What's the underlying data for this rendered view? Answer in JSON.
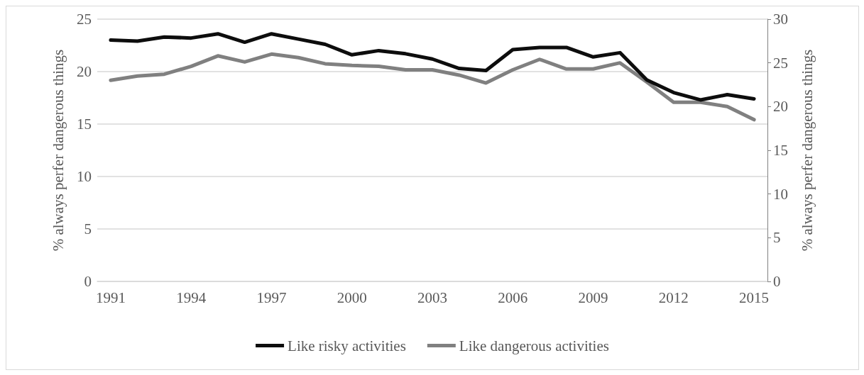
{
  "chart_data": {
    "type": "line",
    "ylabel": "% always perfer dangerous things",
    "y2label": "% always perfer dangerous things",
    "categories": [
      "1991",
      null,
      null,
      "1994",
      null,
      null,
      "1997",
      null,
      null,
      "2000",
      null,
      null,
      "2003",
      null,
      null,
      "2006",
      null,
      null,
      "2009",
      null,
      null,
      "2012",
      null,
      null,
      "2015"
    ],
    "series": [
      {
        "name": "Like risky activities",
        "color": "#0d0d0d",
        "values": [
          23.0,
          22.9,
          23.3,
          23.2,
          23.6,
          22.8,
          23.6,
          23.1,
          22.6,
          21.6,
          22.0,
          21.7,
          21.2,
          20.3,
          20.1,
          22.1,
          22.3,
          22.3,
          21.4,
          21.8,
          19.2,
          18.0,
          17.3,
          17.8,
          17.4
        ]
      },
      {
        "name": "Like dangerous activities",
        "color": "#808080",
        "axis": "y2",
        "values": [
          23.0,
          23.5,
          23.7,
          24.6,
          25.8,
          25.1,
          26.0,
          25.6,
          24.9,
          24.7,
          24.6,
          24.2,
          24.2,
          23.6,
          22.7,
          24.2,
          25.4,
          24.3,
          24.3,
          25.0,
          22.8,
          20.5,
          20.5,
          20.0,
          18.5
        ]
      }
    ],
    "ylim": [
      0,
      25
    ],
    "yticks": [
      0,
      5,
      10,
      15,
      20,
      25
    ],
    "y2lim": [
      0,
      30
    ],
    "y2ticks": [
      0,
      5,
      10,
      15,
      20,
      25,
      30
    ],
    "grid": "y",
    "legend": "bottom",
    "marker": "none",
    "line_style": "solid"
  }
}
